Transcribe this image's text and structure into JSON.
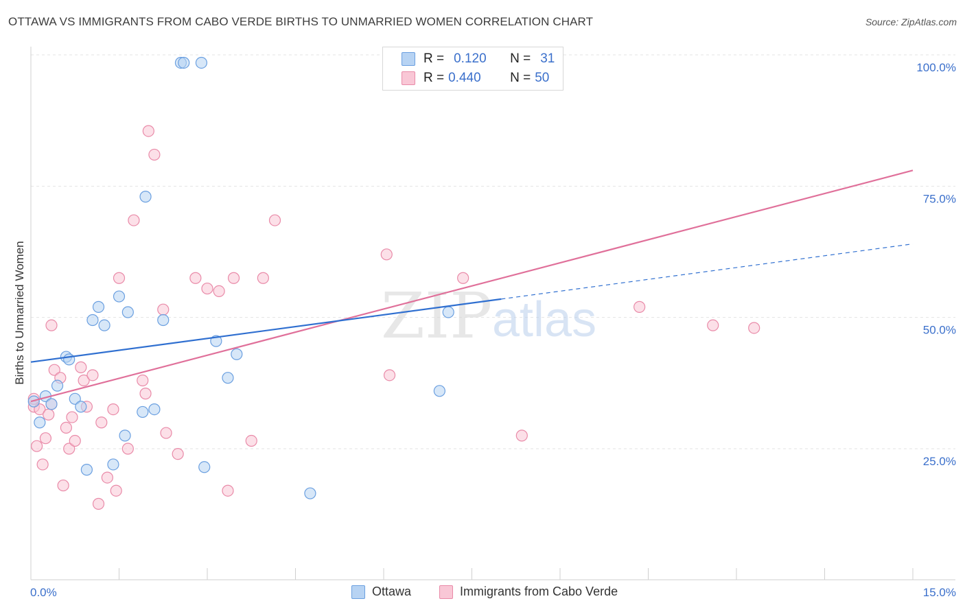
{
  "title": "OTTAWA VS IMMIGRANTS FROM CABO VERDE BIRTHS TO UNMARRIED WOMEN CORRELATION CHART",
  "source": "Source: ZipAtlas.com",
  "watermark": {
    "zip": "ZIP",
    "atlas": "atlas"
  },
  "legend": {
    "ottawa": {
      "r_label": "R =",
      "r_value": "0.120",
      "n_label": "N =",
      "n_value": "31"
    },
    "cabo": {
      "r_label": "R =",
      "r_value": "0.440",
      "n_label": "N =",
      "n_value": "50"
    }
  },
  "bottom_legend": {
    "ottawa": "Ottawa",
    "cabo": "Immigrants from Cabo Verde"
  },
  "colors": {
    "ottawa_fill": "#b7d3f3",
    "ottawa_stroke": "#6a9fe0",
    "ottawa_line": "#2f6fd0",
    "cabo_fill": "#f9c7d6",
    "cabo_stroke": "#e98aa8",
    "cabo_line": "#e0709a",
    "tick_label": "#3a6fcb",
    "grid": "#e3e3e3"
  },
  "chart_data": {
    "type": "scatter",
    "title": "OTTAWA VS IMMIGRANTS FROM CABO VERDE BIRTHS TO UNMARRIED WOMEN CORRELATION CHART",
    "xlabel": "",
    "ylabel": "Births to Unmarried Women",
    "xlim": [
      0,
      15
    ],
    "ylim": [
      0,
      100
    ],
    "x_tick_labels": [
      "0.0%",
      "15.0%"
    ],
    "y_tick_labels": [
      "25.0%",
      "50.0%",
      "75.0%",
      "100.0%"
    ],
    "y_ticks": [
      25,
      50,
      75,
      100
    ],
    "grid": true,
    "legend_position": "top-center",
    "series": [
      {
        "name": "Ottawa",
        "r": 0.12,
        "n": 31,
        "trend": {
          "x0": 0,
          "y0": 41.5,
          "x1": 8.0,
          "y1": 53.5,
          "dashed_to_x": 15,
          "dashed_to_y": 64.0
        },
        "points": [
          [
            0.05,
            34.0
          ],
          [
            0.15,
            30.0
          ],
          [
            0.25,
            35.0
          ],
          [
            0.35,
            33.5
          ],
          [
            0.45,
            37.0
          ],
          [
            0.6,
            42.5
          ],
          [
            0.65,
            42.0
          ],
          [
            0.75,
            34.5
          ],
          [
            0.85,
            33.0
          ],
          [
            0.95,
            21.0
          ],
          [
            1.05,
            49.5
          ],
          [
            1.15,
            52.0
          ],
          [
            1.25,
            48.5
          ],
          [
            1.4,
            22.0
          ],
          [
            1.5,
            54.0
          ],
          [
            1.6,
            27.5
          ],
          [
            1.65,
            51.0
          ],
          [
            1.9,
            32.0
          ],
          [
            1.95,
            73.0
          ],
          [
            2.1,
            32.5
          ],
          [
            2.25,
            49.5
          ],
          [
            2.55,
            98.5
          ],
          [
            2.6,
            98.5
          ],
          [
            2.9,
            98.5
          ],
          [
            2.95,
            21.5
          ],
          [
            3.15,
            45.5
          ],
          [
            3.35,
            38.5
          ],
          [
            3.5,
            43.0
          ],
          [
            4.75,
            16.5
          ],
          [
            6.95,
            36.0
          ],
          [
            7.1,
            51.0
          ]
        ]
      },
      {
        "name": "Immigrants from Cabo Verde",
        "r": 0.44,
        "n": 50,
        "trend": {
          "x0": 0,
          "y0": 34.0,
          "x1": 15,
          "y1": 78.0
        },
        "points": [
          [
            0.05,
            33.0
          ],
          [
            0.1,
            25.5
          ],
          [
            0.15,
            32.5
          ],
          [
            0.2,
            22.0
          ],
          [
            0.25,
            27.0
          ],
          [
            0.3,
            31.5
          ],
          [
            0.35,
            48.5
          ],
          [
            0.4,
            40.0
          ],
          [
            0.5,
            38.5
          ],
          [
            0.55,
            18.0
          ],
          [
            0.6,
            29.0
          ],
          [
            0.65,
            25.0
          ],
          [
            0.7,
            31.0
          ],
          [
            0.75,
            26.5
          ],
          [
            0.85,
            40.5
          ],
          [
            0.9,
            38.0
          ],
          [
            0.95,
            33.0
          ],
          [
            1.05,
            39.0
          ],
          [
            1.15,
            14.5
          ],
          [
            1.2,
            30.0
          ],
          [
            1.3,
            19.5
          ],
          [
            1.4,
            32.5
          ],
          [
            1.45,
            17.0
          ],
          [
            1.5,
            57.5
          ],
          [
            1.65,
            25.0
          ],
          [
            1.75,
            68.5
          ],
          [
            1.9,
            38.0
          ],
          [
            1.95,
            35.5
          ],
          [
            2.0,
            85.5
          ],
          [
            2.1,
            81.0
          ],
          [
            2.25,
            51.5
          ],
          [
            2.3,
            28.0
          ],
          [
            2.5,
            24.0
          ],
          [
            2.8,
            57.5
          ],
          [
            3.0,
            55.5
          ],
          [
            3.2,
            55.0
          ],
          [
            3.35,
            17.0
          ],
          [
            3.45,
            57.5
          ],
          [
            3.75,
            26.5
          ],
          [
            3.95,
            57.5
          ],
          [
            4.15,
            68.5
          ],
          [
            6.05,
            62.0
          ],
          [
            6.1,
            39.0
          ],
          [
            7.35,
            57.5
          ],
          [
            8.35,
            27.5
          ],
          [
            10.35,
            52.0
          ],
          [
            11.6,
            48.5
          ],
          [
            12.3,
            48.0
          ],
          [
            0.35,
            33.5
          ],
          [
            0.05,
            34.5
          ]
        ]
      }
    ]
  }
}
